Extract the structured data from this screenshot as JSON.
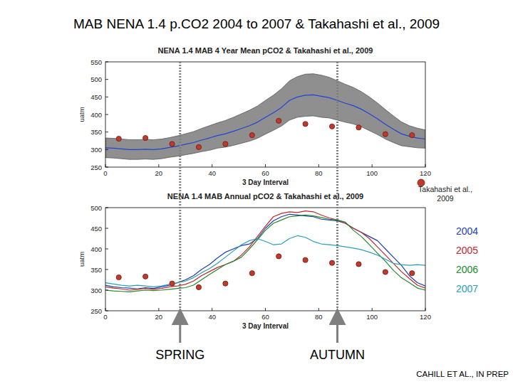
{
  "title": "MAB NENA 1.4 p.CO2 2004 to 2007 & Takahashi et al., 2009",
  "source": "CAHILL ET AL., IN PREP",
  "annotations": [
    {
      "x": 28,
      "label": "SPRING"
    },
    {
      "x": 87,
      "label": "AUTUMN"
    }
  ],
  "chart_data": [
    {
      "type": "line",
      "title": "NENA 1.4 MAB 4 Year Mean pCO2 & Takahashi et al., 2009",
      "x_label": "3 Day Interval",
      "y_label": "uatm",
      "xlim": [
        0,
        120
      ],
      "xticks": [
        0,
        20,
        40,
        60,
        80,
        100,
        120
      ],
      "ylim": [
        250,
        550
      ],
      "yticks": [
        250,
        300,
        350,
        400,
        450,
        500,
        550
      ],
      "grid": false,
      "legend": "right",
      "x": [
        0,
        3,
        6,
        9,
        12,
        15,
        18,
        21,
        24,
        27,
        30,
        33,
        36,
        39,
        42,
        45,
        48,
        51,
        54,
        57,
        60,
        63,
        66,
        69,
        72,
        75,
        78,
        81,
        84,
        87,
        90,
        93,
        96,
        99,
        102,
        105,
        108,
        111,
        114,
        117,
        120
      ],
      "series": [
        {
          "color": "#1f45d6",
          "values": [
            305,
            304,
            302,
            300,
            300,
            301,
            300,
            302,
            306,
            310,
            315,
            320,
            327,
            333,
            340,
            345,
            352,
            360,
            368,
            378,
            392,
            405,
            420,
            440,
            450,
            455,
            456,
            452,
            448,
            440,
            432,
            425,
            415,
            402,
            388,
            372,
            358,
            345,
            338,
            333,
            330
          ],
          "band": {
            "color": "#8f8f8f",
            "lower": [
              277,
              276,
              274,
              272,
              272,
              273,
              272,
              274,
              278,
              281,
              285,
              289,
              294,
              298,
              304,
              307,
              312,
              318,
              324,
              332,
              344,
              355,
              367,
              384,
              392,
              395,
              396,
              392,
              390,
              384,
              378,
              373,
              365,
              354,
              343,
              330,
              320,
              311,
              308,
              305,
              304
            ],
            "upper": [
              333,
              332,
              330,
              328,
              328,
              329,
              328,
              330,
              334,
              339,
              345,
              351,
              360,
              368,
              376,
              383,
              392,
              402,
              412,
              424,
              440,
              455,
              473,
              496,
              508,
              515,
              516,
              512,
              506,
              496,
              486,
              477,
              465,
              450,
              433,
              414,
              396,
              379,
              368,
              361,
              356
            ]
          }
        },
        {
          "name": "Takahashi et al., 2009",
          "type": "scatter",
          "marker": "circle",
          "color": "#c0392b",
          "x": [
            5,
            15,
            25,
            35,
            45,
            55,
            65,
            75,
            85,
            95,
            105,
            115
          ],
          "values": [
            331,
            333,
            316,
            307,
            316,
            341,
            382,
            373,
            366,
            363,
            344,
            341
          ]
        }
      ]
    },
    {
      "type": "line",
      "title": "NENA 1.4 MAB Annual pCO2 & Takahashi et al., 2009",
      "x_label": "3 Day Interval",
      "y_label": "uatm",
      "xlim": [
        0,
        120
      ],
      "xticks": [
        0,
        20,
        40,
        60,
        80,
        100,
        120
      ],
      "ylim": [
        250,
        500
      ],
      "yticks": [
        250,
        300,
        350,
        400,
        450,
        500
      ],
      "grid": false,
      "legend": "right",
      "x": [
        0,
        3,
        6,
        9,
        12,
        15,
        18,
        21,
        24,
        27,
        30,
        33,
        36,
        39,
        42,
        45,
        48,
        51,
        54,
        57,
        60,
        63,
        66,
        69,
        72,
        75,
        78,
        81,
        84,
        87,
        90,
        93,
        96,
        99,
        102,
        105,
        108,
        111,
        114,
        117,
        120
      ],
      "series": [
        {
          "name": "2004",
          "color": "#1f3fb0",
          "values": [
            312,
            308,
            306,
            305,
            303,
            306,
            304,
            308,
            312,
            318,
            325,
            335,
            350,
            362,
            378,
            392,
            400,
            408,
            412,
            425,
            450,
            468,
            478,
            484,
            482,
            480,
            478,
            472,
            470,
            468,
            462,
            450,
            440,
            430,
            420,
            400,
            380,
            360,
            335,
            318,
            310
          ]
        },
        {
          "name": "2005",
          "color": "#c0282d",
          "values": [
            308,
            305,
            303,
            300,
            302,
            304,
            302,
            304,
            308,
            310,
            314,
            322,
            335,
            345,
            355,
            362,
            370,
            385,
            405,
            430,
            455,
            478,
            486,
            490,
            488,
            492,
            490,
            482,
            475,
            470,
            462,
            450,
            440,
            425,
            405,
            385,
            365,
            345,
            328,
            312,
            305
          ]
        },
        {
          "name": "2006",
          "color": "#22882a",
          "values": [
            300,
            298,
            297,
            296,
            298,
            300,
            299,
            300,
            302,
            304,
            306,
            312,
            325,
            338,
            350,
            362,
            370,
            380,
            400,
            422,
            445,
            462,
            470,
            478,
            480,
            482,
            480,
            476,
            472,
            470,
            465,
            445,
            430,
            410,
            390,
            370,
            348,
            330,
            318,
            305,
            300
          ]
        },
        {
          "name": "2007",
          "color": "#2a9fb8",
          "values": [
            318,
            315,
            312,
            310,
            312,
            310,
            308,
            310,
            314,
            318,
            322,
            330,
            342,
            352,
            365,
            380,
            395,
            410,
            420,
            425,
            418,
            410,
            412,
            425,
            432,
            428,
            418,
            412,
            410,
            408,
            405,
            402,
            398,
            392,
            385,
            375,
            365,
            362,
            360,
            362,
            360
          ]
        },
        {
          "type": "scatter",
          "marker": "circle",
          "color": "#c0392b",
          "x": [
            5,
            15,
            25,
            35,
            45,
            55,
            65,
            75,
            85,
            95,
            105,
            115
          ],
          "values": [
            331,
            333,
            316,
            307,
            316,
            341,
            382,
            373,
            366,
            363,
            344,
            341
          ]
        }
      ]
    }
  ]
}
